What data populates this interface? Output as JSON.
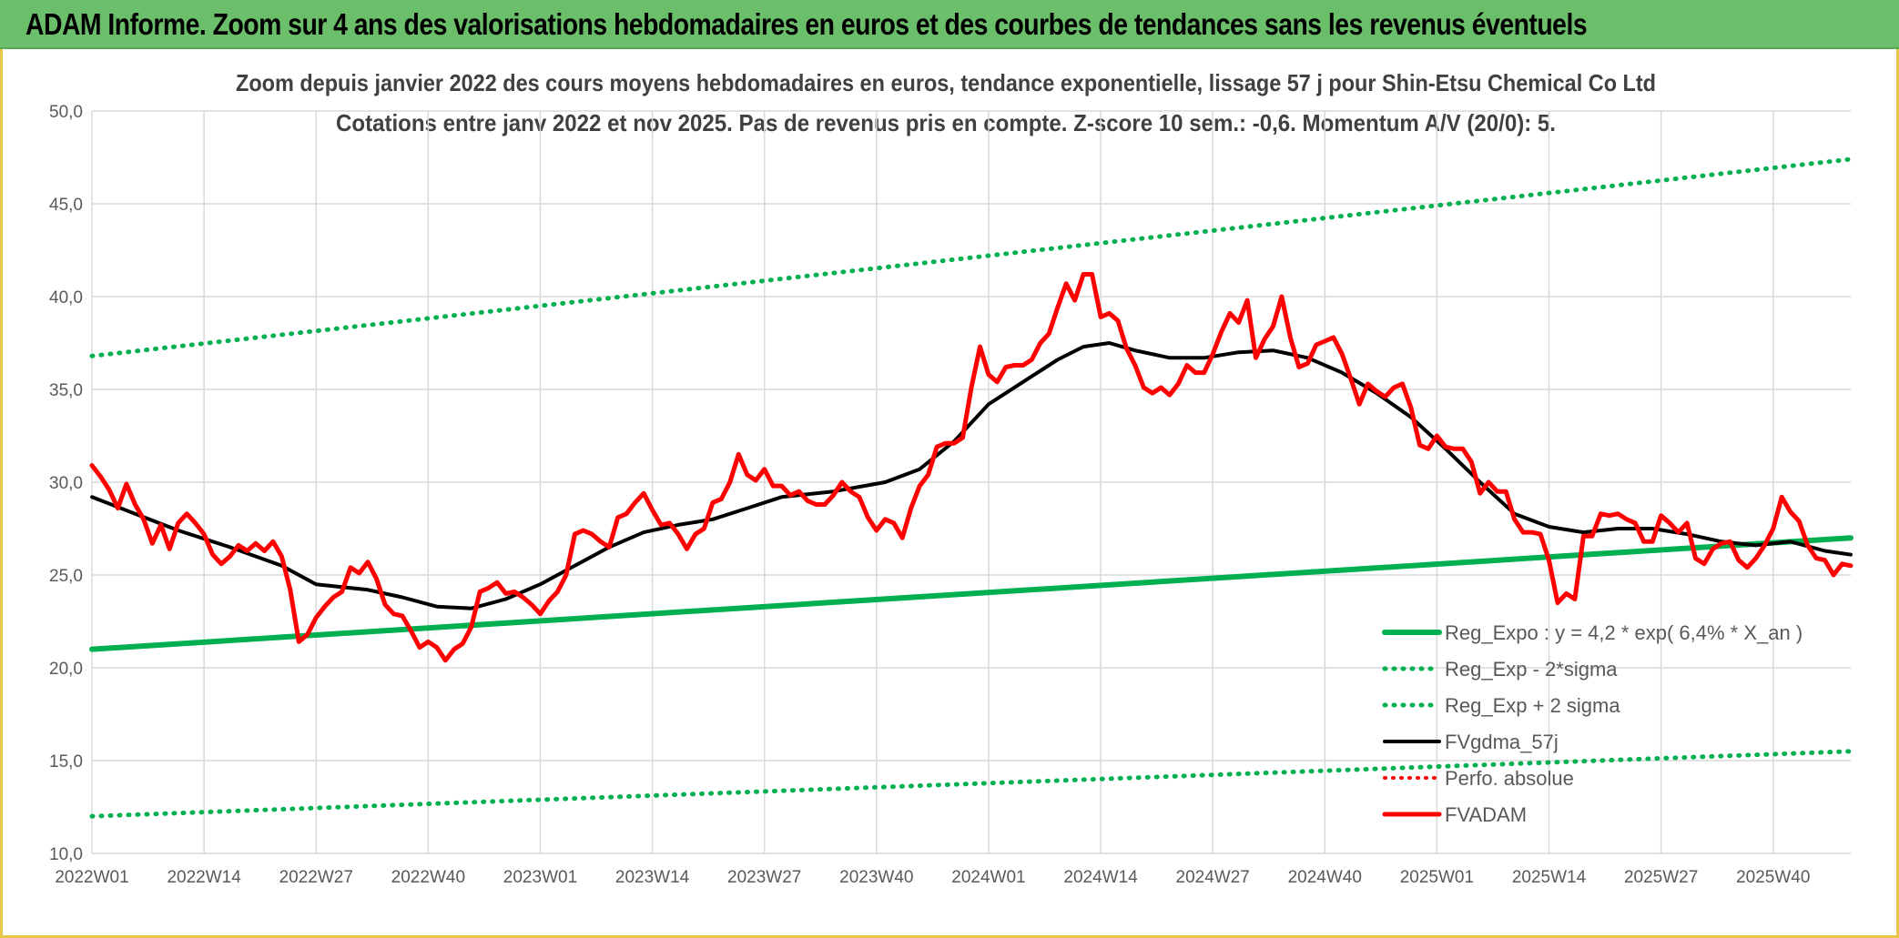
{
  "banner": {
    "title": "ADAM Informe. Zoom sur 4 ans des valorisations hebdomadaires en euros et des courbes de tendances sans les revenus éventuels"
  },
  "colors": {
    "banner_bg": "#6cbf6a",
    "frame_border": "#e8c74a",
    "reg_expo": "#00b050",
    "price": "#ff0000",
    "gdma": "#000000",
    "perfo": "#ff0000"
  },
  "chart_data": {
    "type": "line",
    "title_lines": [
      "Zoom depuis janvier 2022 des cours moyens hebdomadaires en euros, tendance exponentielle, lissage 57 j pour Shin-Etsu Chemical Co Ltd",
      "Cotations entre janv 2022 et nov 2025. Pas de revenus pris en compte. Z-score 10 sem.: -0,6. Momentum A/V (20/0): 5."
    ],
    "ylim": [
      10,
      50
    ],
    "y_ticks": [
      "10,0",
      "15,0",
      "20,0",
      "25,0",
      "30,0",
      "35,0",
      "40,0",
      "45,0",
      "50,0"
    ],
    "x_ticks": [
      {
        "label": "2022W01",
        "index": 0
      },
      {
        "label": "2022W14",
        "index": 13
      },
      {
        "label": "2022W27",
        "index": 26
      },
      {
        "label": "2022W40",
        "index": 39
      },
      {
        "label": "2023W01",
        "index": 52
      },
      {
        "label": "2023W14",
        "index": 65
      },
      {
        "label": "2023W27",
        "index": 78
      },
      {
        "label": "2023W40",
        "index": 91
      },
      {
        "label": "2024W01",
        "index": 104
      },
      {
        "label": "2024W14",
        "index": 117
      },
      {
        "label": "2024W27",
        "index": 130
      },
      {
        "label": "2024W40",
        "index": 143
      },
      {
        "label": "2025W01",
        "index": 156
      },
      {
        "label": "2025W14",
        "index": 169
      },
      {
        "label": "2025W27",
        "index": 182
      },
      {
        "label": "2025W40",
        "index": 195
      }
    ],
    "x_count": 205,
    "grid": true,
    "legend_position": "right",
    "legend": [
      "Reg_Expo : y = 4,2 * exp( 6,4% *  X_an )",
      "Reg_Exp - 2*sigma",
      "Reg_Exp + 2 sigma",
      "FVgdma_57j",
      "Perfo. absolue",
      "FVADAM"
    ],
    "series": [
      {
        "name": "Reg_Expo : y = 4,2 * exp( 6,4% *  X_an )",
        "style": "solid-green",
        "points": [
          [
            0,
            21.0
          ],
          [
            204,
            27.0
          ]
        ]
      },
      {
        "name": "Reg_Exp - 2*sigma",
        "style": "dotted-green",
        "points": [
          [
            0,
            12.0
          ],
          [
            204,
            15.5
          ]
        ]
      },
      {
        "name": "Reg_Exp + 2 sigma",
        "style": "dotted-green",
        "points": [
          [
            0,
            36.8
          ],
          [
            204,
            47.4
          ]
        ]
      },
      {
        "name": "FVgdma_57j",
        "style": "solid-black",
        "points": [
          [
            0,
            29.2
          ],
          [
            5,
            28.3
          ],
          [
            10,
            27.4
          ],
          [
            16,
            26.5
          ],
          [
            22,
            25.5
          ],
          [
            26,
            24.5
          ],
          [
            32,
            24.2
          ],
          [
            36,
            23.8
          ],
          [
            40,
            23.3
          ],
          [
            44,
            23.2
          ],
          [
            48,
            23.7
          ],
          [
            52,
            24.5
          ],
          [
            56,
            25.5
          ],
          [
            60,
            26.5
          ],
          [
            64,
            27.3
          ],
          [
            68,
            27.7
          ],
          [
            72,
            28.0
          ],
          [
            76,
            28.6
          ],
          [
            80,
            29.2
          ],
          [
            86,
            29.5
          ],
          [
            92,
            30.0
          ],
          [
            96,
            30.7
          ],
          [
            100,
            32.2
          ],
          [
            104,
            34.2
          ],
          [
            108,
            35.4
          ],
          [
            112,
            36.6
          ],
          [
            115,
            37.3
          ],
          [
            118,
            37.5
          ],
          [
            121,
            37.1
          ],
          [
            125,
            36.7
          ],
          [
            129,
            36.7
          ],
          [
            133,
            37.0
          ],
          [
            137,
            37.1
          ],
          [
            141,
            36.7
          ],
          [
            145,
            35.9
          ],
          [
            149,
            34.8
          ],
          [
            153,
            33.5
          ],
          [
            157,
            31.8
          ],
          [
            161,
            30.0
          ],
          [
            165,
            28.3
          ],
          [
            169,
            27.6
          ],
          [
            173,
            27.3
          ],
          [
            177,
            27.5
          ],
          [
            181,
            27.5
          ],
          [
            185,
            27.2
          ],
          [
            189,
            26.8
          ],
          [
            193,
            26.6
          ],
          [
            197,
            26.8
          ],
          [
            201,
            26.3
          ],
          [
            204,
            26.1
          ]
        ]
      },
      {
        "name": "Perfo. absolue",
        "style": "dotted-red",
        "points": []
      },
      {
        "name": "FVADAM",
        "style": "solid-red",
        "points": [
          [
            0,
            30.9
          ],
          [
            1,
            30.3
          ],
          [
            2,
            29.6
          ],
          [
            3,
            28.6
          ],
          [
            4,
            29.9
          ],
          [
            5,
            28.8
          ],
          [
            6,
            28.0
          ],
          [
            7,
            26.7
          ],
          [
            8,
            27.7
          ],
          [
            9,
            26.4
          ],
          [
            10,
            27.8
          ],
          [
            11,
            28.3
          ],
          [
            12,
            27.8
          ],
          [
            13,
            27.2
          ],
          [
            14,
            26.1
          ],
          [
            15,
            25.6
          ],
          [
            16,
            26.0
          ],
          [
            17,
            26.6
          ],
          [
            18,
            26.3
          ],
          [
            19,
            26.7
          ],
          [
            20,
            26.3
          ],
          [
            21,
            26.8
          ],
          [
            22,
            26.0
          ],
          [
            23,
            24.2
          ],
          [
            24,
            21.4
          ],
          [
            25,
            21.8
          ],
          [
            26,
            22.7
          ],
          [
            27,
            23.3
          ],
          [
            28,
            23.8
          ],
          [
            29,
            24.1
          ],
          [
            30,
            25.4
          ],
          [
            31,
            25.1
          ],
          [
            32,
            25.7
          ],
          [
            33,
            24.8
          ],
          [
            34,
            23.4
          ],
          [
            35,
            22.9
          ],
          [
            36,
            22.8
          ],
          [
            37,
            22.0
          ],
          [
            38,
            21.1
          ],
          [
            39,
            21.4
          ],
          [
            40,
            21.1
          ],
          [
            41,
            20.4
          ],
          [
            42,
            21.0
          ],
          [
            43,
            21.3
          ],
          [
            44,
            22.2
          ],
          [
            45,
            24.1
          ],
          [
            46,
            24.3
          ],
          [
            47,
            24.6
          ],
          [
            48,
            24.0
          ],
          [
            49,
            24.1
          ],
          [
            50,
            23.8
          ],
          [
            51,
            23.4
          ],
          [
            52,
            22.9
          ],
          [
            53,
            23.6
          ],
          [
            54,
            24.1
          ],
          [
            55,
            25.0
          ],
          [
            56,
            27.2
          ],
          [
            57,
            27.4
          ],
          [
            58,
            27.2
          ],
          [
            59,
            26.8
          ],
          [
            60,
            26.5
          ],
          [
            61,
            28.1
          ],
          [
            62,
            28.3
          ],
          [
            63,
            28.9
          ],
          [
            64,
            29.4
          ],
          [
            65,
            28.5
          ],
          [
            66,
            27.7
          ],
          [
            67,
            27.8
          ],
          [
            68,
            27.2
          ],
          [
            69,
            26.4
          ],
          [
            70,
            27.2
          ],
          [
            71,
            27.5
          ],
          [
            72,
            28.9
          ],
          [
            73,
            29.1
          ],
          [
            74,
            30.0
          ],
          [
            75,
            31.5
          ],
          [
            76,
            30.4
          ],
          [
            77,
            30.1
          ],
          [
            78,
            30.7
          ],
          [
            79,
            29.8
          ],
          [
            80,
            29.8
          ],
          [
            81,
            29.3
          ],
          [
            82,
            29.5
          ],
          [
            83,
            29.0
          ],
          [
            84,
            28.8
          ],
          [
            85,
            28.8
          ],
          [
            86,
            29.3
          ],
          [
            87,
            30.0
          ],
          [
            88,
            29.5
          ],
          [
            89,
            29.2
          ],
          [
            90,
            28.1
          ],
          [
            91,
            27.4
          ],
          [
            92,
            28.0
          ],
          [
            93,
            27.8
          ],
          [
            94,
            27.0
          ],
          [
            95,
            28.6
          ],
          [
            96,
            29.8
          ],
          [
            97,
            30.4
          ],
          [
            98,
            31.9
          ],
          [
            99,
            32.1
          ],
          [
            100,
            32.1
          ],
          [
            101,
            32.4
          ],
          [
            102,
            35.1
          ],
          [
            103,
            37.3
          ],
          [
            104,
            35.8
          ],
          [
            105,
            35.4
          ],
          [
            106,
            36.2
          ],
          [
            107,
            36.3
          ],
          [
            108,
            36.3
          ],
          [
            109,
            36.6
          ],
          [
            110,
            37.5
          ],
          [
            111,
            38.0
          ],
          [
            112,
            39.4
          ],
          [
            113,
            40.7
          ],
          [
            114,
            39.8
          ],
          [
            115,
            41.2
          ],
          [
            116,
            41.2
          ],
          [
            117,
            38.9
          ],
          [
            118,
            39.1
          ],
          [
            119,
            38.7
          ],
          [
            120,
            37.2
          ],
          [
            121,
            36.3
          ],
          [
            122,
            35.1
          ],
          [
            123,
            34.8
          ],
          [
            124,
            35.1
          ],
          [
            125,
            34.7
          ],
          [
            126,
            35.3
          ],
          [
            127,
            36.3
          ],
          [
            128,
            35.9
          ],
          [
            129,
            35.9
          ],
          [
            130,
            36.9
          ],
          [
            131,
            38.1
          ],
          [
            132,
            39.1
          ],
          [
            133,
            38.6
          ],
          [
            134,
            39.8
          ],
          [
            135,
            36.7
          ],
          [
            136,
            37.7
          ],
          [
            137,
            38.4
          ],
          [
            138,
            40.0
          ],
          [
            139,
            37.8
          ],
          [
            140,
            36.2
          ],
          [
            141,
            36.4
          ],
          [
            142,
            37.4
          ],
          [
            143,
            37.6
          ],
          [
            144,
            37.8
          ],
          [
            145,
            36.9
          ],
          [
            146,
            35.6
          ],
          [
            147,
            34.2
          ],
          [
            148,
            35.3
          ],
          [
            149,
            34.9
          ],
          [
            150,
            34.6
          ],
          [
            151,
            35.1
          ],
          [
            152,
            35.3
          ],
          [
            153,
            34.0
          ],
          [
            154,
            32.0
          ],
          [
            155,
            31.8
          ],
          [
            156,
            32.5
          ],
          [
            157,
            31.9
          ],
          [
            158,
            31.8
          ],
          [
            159,
            31.8
          ],
          [
            160,
            31.1
          ],
          [
            161,
            29.4
          ],
          [
            162,
            30.0
          ],
          [
            163,
            29.5
          ],
          [
            164,
            29.5
          ],
          [
            165,
            28.0
          ],
          [
            166,
            27.3
          ],
          [
            167,
            27.3
          ],
          [
            168,
            27.2
          ],
          [
            169,
            25.8
          ],
          [
            170,
            23.5
          ],
          [
            171,
            24.0
          ],
          [
            172,
            23.7
          ],
          [
            173,
            27.1
          ],
          [
            174,
            27.1
          ],
          [
            175,
            28.3
          ],
          [
            176,
            28.2
          ],
          [
            177,
            28.3
          ],
          [
            178,
            28.0
          ],
          [
            179,
            27.8
          ],
          [
            180,
            26.8
          ],
          [
            181,
            26.8
          ],
          [
            182,
            28.2
          ],
          [
            183,
            27.8
          ],
          [
            184,
            27.3
          ],
          [
            185,
            27.8
          ],
          [
            186,
            25.9
          ],
          [
            187,
            25.6
          ],
          [
            188,
            26.4
          ],
          [
            189,
            26.7
          ],
          [
            190,
            26.8
          ],
          [
            191,
            25.8
          ],
          [
            192,
            25.4
          ],
          [
            193,
            25.9
          ],
          [
            194,
            26.6
          ],
          [
            195,
            27.5
          ],
          [
            196,
            29.2
          ],
          [
            197,
            28.4
          ],
          [
            198,
            27.9
          ],
          [
            199,
            26.6
          ],
          [
            200,
            25.9
          ],
          [
            201,
            25.8
          ],
          [
            202,
            25.0
          ],
          [
            203,
            25.6
          ],
          [
            204,
            25.5
          ]
        ]
      }
    ]
  }
}
